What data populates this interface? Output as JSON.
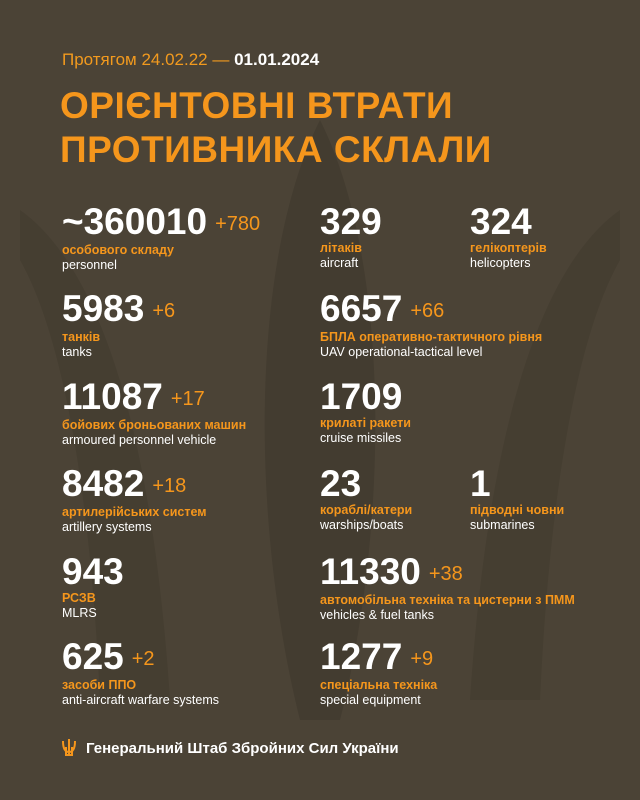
{
  "header": {
    "period_prefix": "Протягом 24.02.22 —",
    "period_end": "01.01.2024",
    "title_line1": "ОРІЄНТОВНІ ВТРАТИ",
    "title_line2": "ПРОТИВНИКА СКЛАЛИ"
  },
  "stats": [
    {
      "value": "~360010",
      "delta": "+780",
      "ua": "особового складу",
      "en": "personnel"
    },
    {
      "value": "329",
      "delta": "",
      "ua": "літаків",
      "en": "aircraft"
    },
    {
      "value": "324",
      "delta": "",
      "ua": "гелікоптерів",
      "en": "helicopters"
    },
    {
      "value": "5983",
      "delta": "+6",
      "ua": "танків",
      "en": "tanks"
    },
    {
      "value": "6657",
      "delta": "+66",
      "ua": "БПЛА оперативно-тактичного рівня",
      "en": "UAV operational-tactical level"
    },
    {
      "value": "11087",
      "delta": "+17",
      "ua": "бойових броньованих машин",
      "en": "armoured personnel vehicle"
    },
    {
      "value": "1709",
      "delta": "",
      "ua": "крилаті ракети",
      "en": "cruise missiles"
    },
    {
      "value": "8482",
      "delta": "+18",
      "ua": "артилерійських систем",
      "en": "artillery systems"
    },
    {
      "value": "23",
      "delta": "",
      "ua": "кораблі/катери",
      "en": "warships/boats"
    },
    {
      "value": "1",
      "delta": "",
      "ua": "підводні човни",
      "en": "submarines"
    },
    {
      "value": "943",
      "delta": "",
      "ua": "РСЗВ",
      "en": "MLRS"
    },
    {
      "value": "11330",
      "delta": "+38",
      "ua": "автомобільна техніка та цистерни з ПММ",
      "en": "vehicles & fuel tanks"
    },
    {
      "value": "625",
      "delta": "+2",
      "ua": "засоби ППО",
      "en": "anti-aircraft warfare systems"
    },
    {
      "value": "1277",
      "delta": "+9",
      "ua": "спеціальна техніка",
      "en": "special equipment"
    }
  ],
  "footer": {
    "org": "Генеральний Штаб Збройних Сил України",
    "icon": "trident-icon"
  },
  "colors": {
    "accent": "#f5961c",
    "background": "#4b4336"
  }
}
